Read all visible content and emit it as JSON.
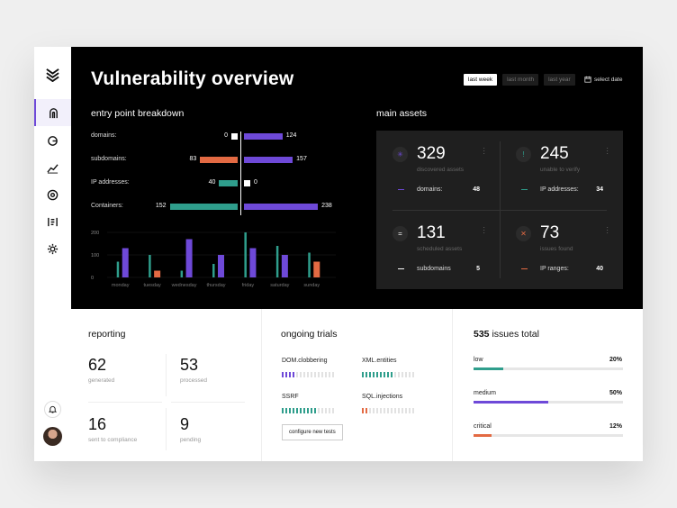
{
  "colors": {
    "purple": "#6e49d8",
    "green": "#2f9e8c",
    "orange": "#e36a43"
  },
  "header": {
    "title": "Vulnerability overview",
    "filters": [
      "last week",
      "last month",
      "last year"
    ],
    "active_filter": "last week",
    "select_date": "select date"
  },
  "entry_points": {
    "title": "entry point breakdown",
    "rows": [
      {
        "label": "domains:",
        "left": 0,
        "right": 124
      },
      {
        "label": "subdomains:",
        "left": 83,
        "right": 157
      },
      {
        "label": "IP addresses:",
        "left": 40,
        "right": 0
      },
      {
        "label": "Containers:",
        "left": 152,
        "right": 238
      }
    ]
  },
  "chart_data": {
    "type": "bar",
    "categories": [
      "monday",
      "tuesday",
      "wednesday",
      "thursday",
      "friday",
      "saturday",
      "sunday"
    ],
    "yticks": [
      200,
      100,
      0
    ],
    "ylim": [
      0,
      200
    ],
    "series": [
      {
        "color": "#2f9e8c",
        "values": [
          70,
          100,
          30,
          60,
          200,
          140,
          110
        ]
      },
      {
        "color": "#6e49d8",
        "values": [
          130,
          30,
          170,
          100,
          130,
          100,
          70
        ]
      }
    ],
    "sunday_second_color": "#e36a43",
    "tuesday_second_color": "#e36a43"
  },
  "main_assets": {
    "title": "main assets",
    "items": [
      {
        "value": "329",
        "caption": "discovered assets",
        "label": "domains:",
        "count": "48",
        "icon": "spark-icon",
        "color": "#6e49d8",
        "glyph": "✳"
      },
      {
        "value": "245",
        "caption": "unable to verify",
        "label": "IP addresses:",
        "count": "34",
        "icon": "exclamation-icon",
        "color": "#2f9e8c",
        "glyph": "!"
      },
      {
        "value": "131",
        "caption": "scheduled assets",
        "label": "subdomains",
        "count": "5",
        "icon": "equals-icon",
        "color": "#ffffff",
        "glyph": "="
      },
      {
        "value": "73",
        "caption": "issues found",
        "label": "IP ranges:",
        "count": "40",
        "icon": "close-icon",
        "color": "#e36a43",
        "glyph": "✕"
      }
    ]
  },
  "reporting": {
    "title": "reporting",
    "stats": [
      {
        "value": "62",
        "label": "generated"
      },
      {
        "value": "53",
        "label": "processed"
      },
      {
        "value": "16",
        "label": "sent to compliance"
      },
      {
        "value": "9",
        "label": "pending"
      }
    ]
  },
  "trials": {
    "title": "ongoing trials",
    "items": [
      {
        "name": "DOM.clobbering",
        "color": "#6e49d8",
        "filled": 4
      },
      {
        "name": "XML.entities",
        "color": "#2f9e8c",
        "filled": 9
      },
      {
        "name": "SSRF",
        "color": "#2f9e8c",
        "filled": 10
      },
      {
        "name": "SQL.injections",
        "color": "#e36a43",
        "filled": 2
      }
    ],
    "total_ticks": 15,
    "button": "configure new tests"
  },
  "issues": {
    "count": "535",
    "title_suffix": " issues total",
    "items": [
      {
        "label": "low",
        "pct": "20%",
        "fraction": 0.2,
        "color": "#2f9e8c"
      },
      {
        "label": "medium",
        "pct": "50%",
        "fraction": 0.5,
        "color": "#6e49d8"
      },
      {
        "label": "critical",
        "pct": "12%",
        "fraction": 0.12,
        "color": "#e36a43"
      }
    ]
  }
}
